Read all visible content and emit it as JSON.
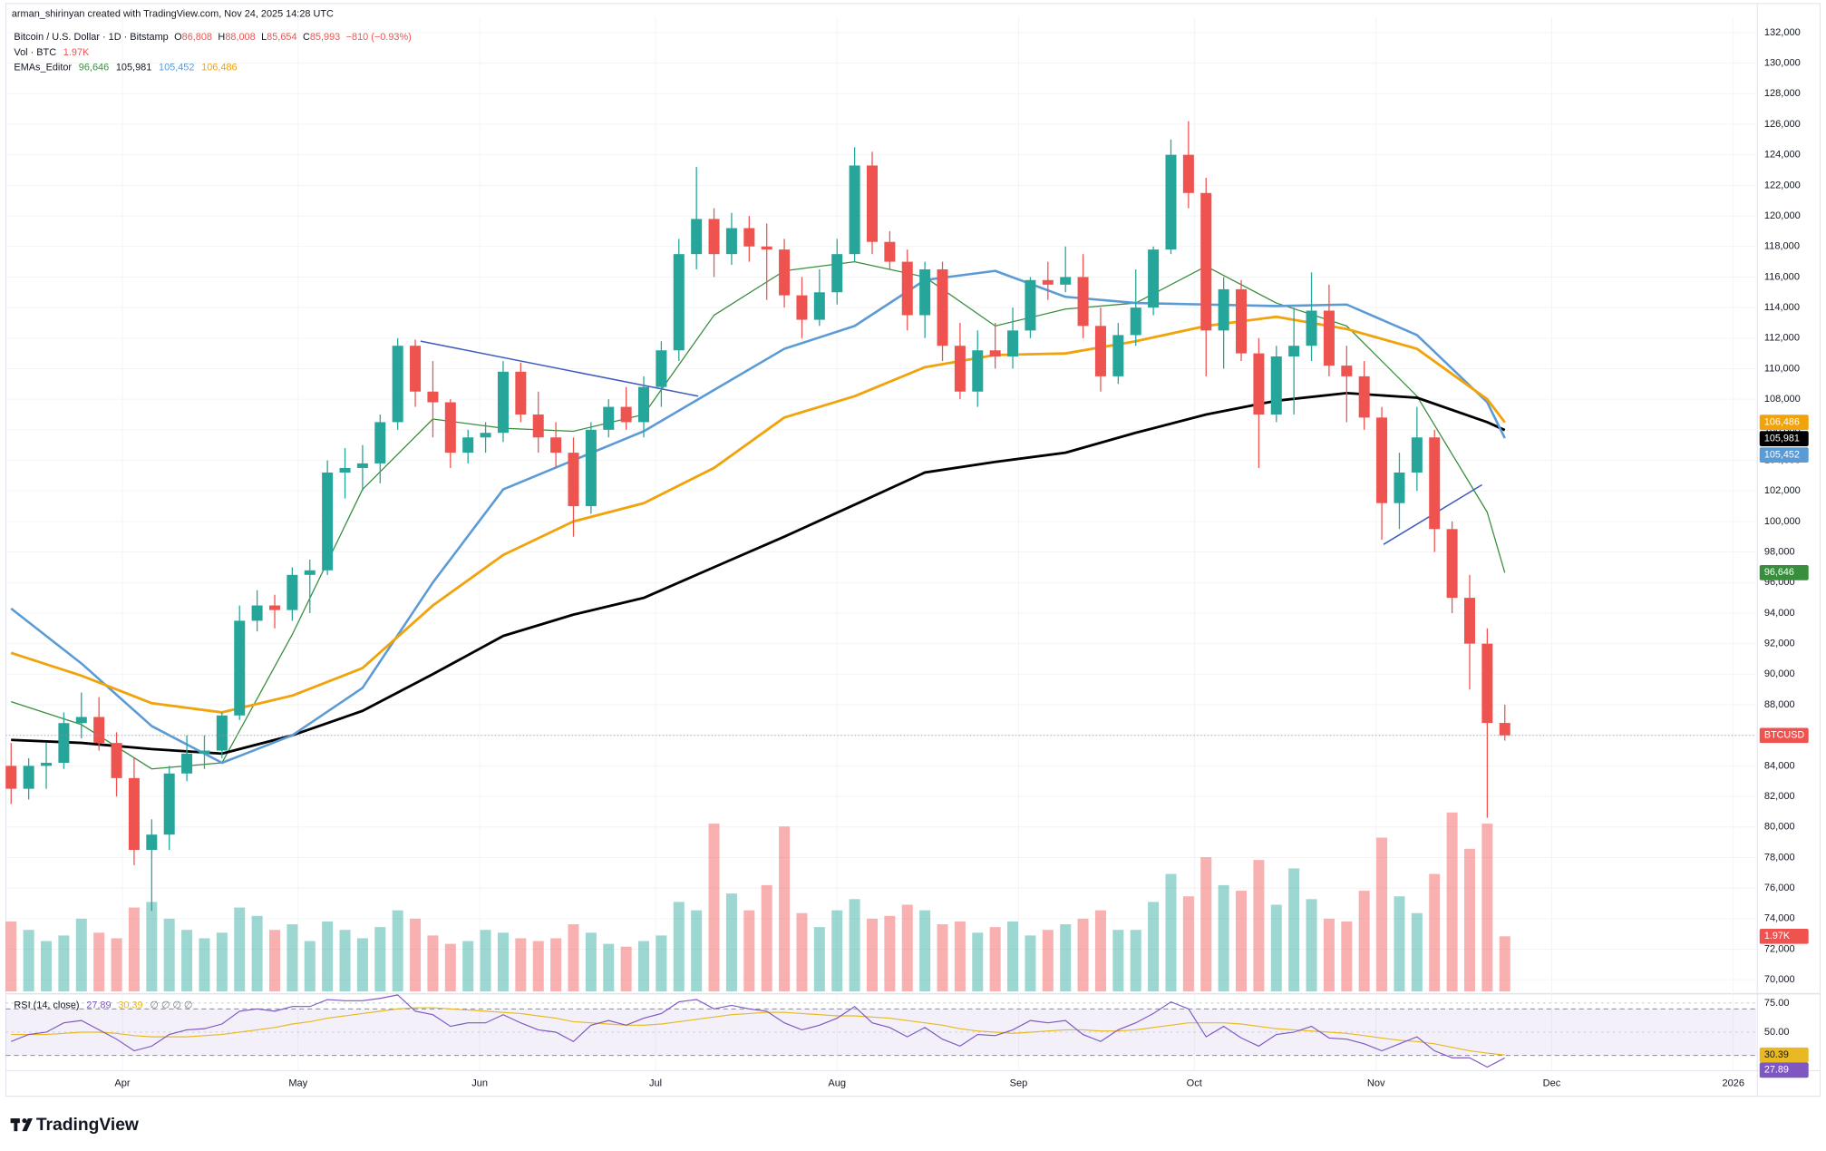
{
  "header": {
    "attribution": "arman_shirinyan created with TradingView.com, Nov 24, 2025 14:28 UTC"
  },
  "chart_data": {
    "type": "candlestick",
    "title": "Bitcoin / U.S. Dollar · 1D · Bitstamp",
    "ohlc_prefixes": [
      "O",
      "H",
      "L",
      "C"
    ],
    "last_labels": [
      "86,808",
      "88,008",
      "85,654",
      "85,993"
    ],
    "change_label": "−810 (−0.93%)",
    "symbol_tag": "BTCUSD",
    "up_color": "#26a69a",
    "down_color": "#ef5350",
    "xlim": [
      -0.3,
      99.3
    ],
    "xticks": [
      {
        "value": 6.33,
        "label": "Apr"
      },
      {
        "value": 16.33,
        "label": "May"
      },
      {
        "value": 26.67,
        "label": "Jun"
      },
      {
        "value": 36.67,
        "label": "Jul"
      },
      {
        "value": 47,
        "label": "Aug"
      },
      {
        "value": 57.33,
        "label": "Sep"
      },
      {
        "value": 67.33,
        "label": "Oct"
      },
      {
        "value": 77.67,
        "label": "Nov"
      },
      {
        "value": 87.67,
        "label": "Dec"
      },
      {
        "value": 98,
        "label": "2026"
      }
    ],
    "ylim": [
      69160,
      132990
    ],
    "yticks": [
      {
        "value": 70000,
        "label": "70,000"
      },
      {
        "value": 72000,
        "label": "72,000"
      },
      {
        "value": 74000,
        "label": "74,000"
      },
      {
        "value": 76000,
        "label": "76,000"
      },
      {
        "value": 78000,
        "label": "78,000"
      },
      {
        "value": 80000,
        "label": "80,000"
      },
      {
        "value": 82000,
        "label": "82,000"
      },
      {
        "value": 84000,
        "label": "84,000"
      },
      {
        "value": 86000,
        "label": "86,000"
      },
      {
        "value": 88000,
        "label": "88,000"
      },
      {
        "value": 90000,
        "label": "90,000"
      },
      {
        "value": 92000,
        "label": "92,000"
      },
      {
        "value": 94000,
        "label": "94,000"
      },
      {
        "value": 96000,
        "label": "96,000"
      },
      {
        "value": 98000,
        "label": "98,000"
      },
      {
        "value": 100000,
        "label": "100,000"
      },
      {
        "value": 102000,
        "label": "102,000"
      },
      {
        "value": 104000,
        "label": "104,000"
      },
      {
        "value": 106000,
        "label": "106,000"
      },
      {
        "value": 108000,
        "label": "108,000"
      },
      {
        "value": 110000,
        "label": "110,000"
      },
      {
        "value": 112000,
        "label": "112,000"
      },
      {
        "value": 114000,
        "label": "114,000"
      },
      {
        "value": 116000,
        "label": "116,000"
      },
      {
        "value": 118000,
        "label": "118,000"
      },
      {
        "value": 120000,
        "label": "120,000"
      },
      {
        "value": 122000,
        "label": "122,000"
      },
      {
        "value": 124000,
        "label": "124,000"
      },
      {
        "value": 126000,
        "label": "126,000"
      },
      {
        "value": 128000,
        "label": "128,000"
      },
      {
        "value": 130000,
        "label": "130,000"
      },
      {
        "value": 132000,
        "label": "132,000"
      }
    ],
    "grid": true,
    "candles": [
      [
        84000,
        85500,
        81500,
        82500
      ],
      [
        82500,
        84500,
        81800,
        84000
      ],
      [
        84000,
        85500,
        82500,
        84200
      ],
      [
        84200,
        87500,
        83800,
        86800
      ],
      [
        86800,
        88800,
        85800,
        87200
      ],
      [
        87200,
        88500,
        85000,
        85500
      ],
      [
        85500,
        86200,
        82000,
        83200
      ],
      [
        83200,
        84500,
        77500,
        78500
      ],
      [
        78500,
        80500,
        74500,
        79500
      ],
      [
        79500,
        84000,
        78500,
        83500
      ],
      [
        83500,
        86000,
        83000,
        84800
      ],
      [
        84800,
        86000,
        83800,
        85000
      ],
      [
        85000,
        87500,
        84500,
        87300
      ],
      [
        87300,
        94500,
        87000,
        93500
      ],
      [
        93500,
        95500,
        92800,
        94500
      ],
      [
        94500,
        95200,
        93000,
        94200
      ],
      [
        94200,
        97000,
        93500,
        96500
      ],
      [
        96500,
        97500,
        94000,
        96800
      ],
      [
        96800,
        104000,
        96500,
        103200
      ],
      [
        103200,
        104800,
        101500,
        103500
      ],
      [
        103500,
        105000,
        102000,
        103800
      ],
      [
        103800,
        107000,
        102500,
        106500
      ],
      [
        106500,
        112000,
        106000,
        111500
      ],
      [
        111500,
        111900,
        107500,
        108500
      ],
      [
        108500,
        110500,
        105500,
        107800
      ],
      [
        107800,
        108000,
        103500,
        104500
      ],
      [
        104500,
        106000,
        103800,
        105500
      ],
      [
        105500,
        106500,
        104500,
        105800
      ],
      [
        105800,
        110500,
        105200,
        109800
      ],
      [
        109800,
        110400,
        106500,
        107000
      ],
      [
        107000,
        108500,
        104500,
        105500
      ],
      [
        105500,
        106500,
        103500,
        104500
      ],
      [
        104500,
        105500,
        99000,
        101000
      ],
      [
        101000,
        106500,
        100500,
        106000
      ],
      [
        106000,
        108000,
        105500,
        107500
      ],
      [
        107500,
        108800,
        106000,
        106500
      ],
      [
        106500,
        109500,
        105500,
        108800
      ],
      [
        108800,
        111800,
        107500,
        111200
      ],
      [
        111200,
        118500,
        110500,
        117500
      ],
      [
        117500,
        123200,
        116500,
        119800
      ],
      [
        119800,
        120500,
        116000,
        117500
      ],
      [
        117500,
        120200,
        116800,
        119200
      ],
      [
        119200,
        120000,
        117000,
        118000
      ],
      [
        118000,
        119500,
        114500,
        117800
      ],
      [
        117800,
        118500,
        114000,
        114800
      ],
      [
        114800,
        116000,
        112000,
        113200
      ],
      [
        113200,
        116500,
        112800,
        115000
      ],
      [
        115000,
        118500,
        114200,
        117500
      ],
      [
        117500,
        124500,
        117000,
        123300
      ],
      [
        123300,
        124200,
        117500,
        118300
      ],
      [
        118300,
        119000,
        116500,
        117000
      ],
      [
        117000,
        117800,
        112500,
        113500
      ],
      [
        113500,
        117000,
        112000,
        116500
      ],
      [
        116500,
        117000,
        110500,
        111500
      ],
      [
        111500,
        113000,
        108000,
        108500
      ],
      [
        108500,
        112500,
        107500,
        111200
      ],
      [
        111200,
        113000,
        110000,
        110800
      ],
      [
        110800,
        114000,
        110000,
        112500
      ],
      [
        112500,
        116000,
        112000,
        115800
      ],
      [
        115800,
        117000,
        114500,
        115500
      ],
      [
        115500,
        118000,
        115000,
        116000
      ],
      [
        116000,
        117500,
        112000,
        112800
      ],
      [
        112800,
        114000,
        108500,
        109500
      ],
      [
        109500,
        113000,
        109000,
        112200
      ],
      [
        112200,
        116500,
        111500,
        114000
      ],
      [
        114000,
        118000,
        113500,
        117800
      ],
      [
        117800,
        125000,
        117500,
        124000
      ],
      [
        124000,
        126200,
        120500,
        121500
      ],
      [
        121500,
        122500,
        109500,
        112500
      ],
      [
        112500,
        116000,
        110000,
        115200
      ],
      [
        115200,
        115800,
        110500,
        111000
      ],
      [
        111000,
        112000,
        103500,
        107000
      ],
      [
        107000,
        111500,
        106500,
        110800
      ],
      [
        110800,
        114000,
        107000,
        111500
      ],
      [
        111500,
        116300,
        110500,
        113800
      ],
      [
        113800,
        115500,
        109500,
        110200
      ],
      [
        110200,
        111500,
        106500,
        109500
      ],
      [
        109500,
        110500,
        106000,
        106800
      ],
      [
        106800,
        107500,
        98800,
        101200
      ],
      [
        101200,
        104500,
        99500,
        103200
      ],
      [
        103200,
        107500,
        102000,
        105500
      ],
      [
        105500,
        106000,
        98000,
        99500
      ],
      [
        99500,
        100000,
        94000,
        95000
      ],
      [
        95000,
        96500,
        89000,
        92000
      ],
      [
        92000,
        93000,
        80600,
        86808
      ],
      [
        86808,
        88008,
        85654,
        85993
      ]
    ],
    "volume": {
      "name": "Vol · BTC",
      "ylim": [
        0,
        6500
      ],
      "last_label": "1.97K",
      "values": [
        2500,
        2200,
        1800,
        2000,
        2600,
        2100,
        1900,
        3000,
        3200,
        2600,
        2200,
        1900,
        2100,
        3000,
        2700,
        2200,
        2400,
        1800,
        2500,
        2200,
        1900,
        2300,
        2900,
        2600,
        2000,
        1700,
        1800,
        2200,
        2100,
        1900,
        1800,
        1900,
        2400,
        2100,
        1700,
        1600,
        1800,
        2000,
        3200,
        2900,
        6000,
        3500,
        2900,
        3800,
        5900,
        2800,
        2300,
        2900,
        3300,
        2600,
        2700,
        3100,
        2900,
        2400,
        2500,
        2100,
        2300,
        2500,
        2000,
        2200,
        2400,
        2600,
        2900,
        2200,
        2200,
        3200,
        4200,
        3400,
        4800,
        3800,
        3600,
        4700,
        3100,
        4400,
        3300,
        2600,
        2500,
        3600,
        5500,
        3400,
        2800,
        4200,
        6400,
        5100,
        6000,
        1970
      ]
    },
    "ema_name": "EMAs_Editor",
    "ema_x": [
      0,
      4,
      8,
      12,
      16,
      20,
      24,
      28,
      32,
      36,
      40,
      44,
      48,
      52,
      56,
      60,
      64,
      68,
      72,
      76,
      80,
      84,
      85
    ],
    "emas": [
      {
        "color": "#388e3c",
        "width": 1,
        "last_label": "96,646",
        "values": [
          88200,
          86700,
          83800,
          84200,
          92600,
          102100,
          106700,
          106100,
          105900,
          107000,
          113500,
          116400,
          117000,
          116000,
          112800,
          113900,
          114300,
          116700,
          114300,
          112800,
          108200,
          100600,
          96646
        ]
      },
      {
        "color": "#000000",
        "width": 2.2,
        "last_label": "105,981",
        "values": [
          85700,
          85500,
          85100,
          84800,
          86000,
          87600,
          90000,
          92500,
          93900,
          95000,
          97000,
          99000,
          101100,
          103200,
          103900,
          104500,
          105800,
          107000,
          107900,
          108400,
          108100,
          106500,
          105981
        ]
      },
      {
        "color": "#5b9bd5",
        "width": 2,
        "last_label": "105,452",
        "values": [
          94300,
          90700,
          86600,
          84200,
          86000,
          89100,
          96000,
          102100,
          104000,
          105900,
          108600,
          111300,
          112800,
          115800,
          116400,
          114700,
          114300,
          114200,
          114100,
          114200,
          112200,
          107800,
          105452
        ]
      },
      {
        "color": "#f0a30a",
        "width": 2.2,
        "last_label": "106,486",
        "values": [
          91400,
          89900,
          88100,
          87500,
          88600,
          90400,
          94500,
          97800,
          100000,
          101200,
          103500,
          106800,
          108200,
          110100,
          110900,
          111000,
          111800,
          112800,
          113400,
          112600,
          111300,
          108000,
          106486
        ]
      }
    ],
    "trend_lines": [
      {
        "color": "#3f5bbf",
        "x": [
          23.3,
          39.1
        ],
        "y": [
          111800,
          108200
        ]
      },
      {
        "color": "#3f5bbf",
        "x": [
          78.1,
          83.7
        ],
        "y": [
          98500,
          102400
        ]
      }
    ],
    "rsi": {
      "name": "RSI (14, close)",
      "color": "#7e57c2",
      "ma_color": "#e8b923",
      "extra": "∅ ∅ ∅ ∅",
      "ylim": [
        17,
        82
      ],
      "yticks": [
        {
          "value": 75,
          "label": "75.00"
        },
        {
          "value": 50,
          "label": "50.00"
        }
      ],
      "bands": [
        70,
        30
      ],
      "values": [
        42,
        48,
        50,
        58,
        60,
        52,
        44,
        34,
        38,
        48,
        52,
        53,
        57,
        68,
        70,
        68,
        72,
        72,
        78,
        77,
        77,
        79,
        82,
        68,
        65,
        55,
        58,
        58,
        65,
        58,
        52,
        50,
        42,
        56,
        60,
        56,
        62,
        66,
        76,
        78,
        70,
        73,
        70,
        68,
        58,
        52,
        56,
        62,
        72,
        58,
        54,
        46,
        54,
        44,
        38,
        48,
        47,
        52,
        60,
        58,
        60,
        48,
        42,
        52,
        58,
        66,
        76,
        70,
        46,
        55,
        45,
        38,
        48,
        50,
        55,
        45,
        44,
        40,
        34,
        40,
        46,
        34,
        28,
        28,
        20,
        27.89
      ],
      "ma_values": [
        48,
        48,
        48,
        49,
        50,
        50,
        49,
        47,
        46,
        46,
        46,
        47,
        48,
        50,
        52,
        54,
        57,
        59,
        62,
        64,
        66,
        68,
        70,
        71,
        71,
        70,
        69,
        68,
        67,
        66,
        64,
        62,
        59,
        58,
        57,
        56,
        56,
        57,
        59,
        61,
        63,
        65,
        66,
        67,
        67,
        66,
        65,
        64,
        64,
        63,
        62,
        60,
        58,
        56,
        53,
        51,
        50,
        49,
        50,
        51,
        52,
        52,
        51,
        51,
        52,
        54,
        56,
        58,
        58,
        58,
        57,
        55,
        53,
        52,
        51,
        50,
        49,
        47,
        45,
        43,
        42,
        40,
        37,
        34,
        32,
        30.39
      ]
    }
  },
  "footer": {
    "brand": "TradingView"
  }
}
